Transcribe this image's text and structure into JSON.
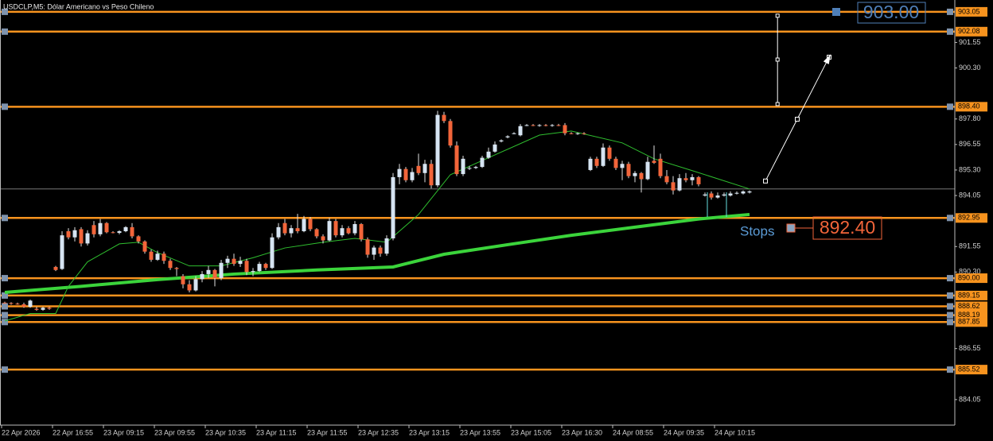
{
  "header": {
    "title": "USDCLP,M5:  Dólar Americano vs Peso Chileno"
  },
  "chart_data": {
    "type": "candlestick",
    "up_color": "#d6e4f2",
    "down_color": "#f2653a",
    "wick_color": "#e0e0e0",
    "ylim": [
      882.8,
      903.63
    ],
    "yticks": [
      901.55,
      {
        "value": 900.3,
        "label": "900.30"
      },
      {
        "value": 897.8,
        "label": "897.80"
      },
      896.55,
      {
        "value": 895.3,
        "label": "895.30"
      },
      894.05,
      891.55,
      {
        "value": 890.3,
        "label": "890.30"
      },
      886.55,
      884.05
    ],
    "x_labels": [
      "22 Apr 2026",
      "22 Apr 16:55",
      "23 Apr 09:15",
      "23 Apr 09:55",
      "23 Apr 10:35",
      "23 Apr 11:15",
      "23 Apr 11:55",
      "23 Apr 12:35",
      "23 Apr 13:15",
      "23 Apr 13:55",
      "23 Apr 15:05",
      "23 Apr 16:30",
      "24 Apr 08:55",
      "24 Apr 09:35",
      "24 Apr 10:15"
    ],
    "levels": [
      903.05,
      902.08,
      {
        "value": 898.4,
        "label": "898.40"
      },
      892.95,
      {
        "value": 890,
        "label": "890.00"
      },
      889.15,
      888.62,
      888.19,
      887.85,
      885.52
    ],
    "level_color": "#f7931e",
    "bid": 894.37,
    "candles": [
      [
        888.8,
        888.85,
        888.75,
        888.78
      ],
      [
        888.78,
        888.82,
        888.7,
        888.75
      ],
      [
        888.75,
        888.8,
        888.7,
        888.72
      ],
      [
        888.72,
        888.8,
        888.55,
        888.6
      ],
      [
        888.6,
        888.95,
        888.55,
        888.9
      ],
      [
        888.5,
        888.6,
        888.4,
        888.45
      ],
      [
        888.45,
        888.6,
        888.4,
        888.55
      ],
      [
        888.55,
        888.6,
        888.45,
        888.5
      ],
      [
        890.55,
        890.6,
        890.35,
        890.4
      ],
      [
        890.45,
        892.3,
        890.4,
        892.1
      ],
      [
        892.3,
        892.45,
        891.9,
        892.0
      ],
      [
        892.0,
        892.5,
        891.8,
        892.35
      ],
      [
        892.4,
        892.5,
        891.55,
        891.7
      ],
      [
        891.7,
        892.35,
        891.6,
        892.2
      ],
      [
        892.6,
        892.8,
        892.0,
        892.15
      ],
      [
        892.15,
        892.9,
        892.05,
        892.7
      ],
      [
        892.7,
        892.75,
        892.2,
        892.25
      ],
      [
        892.25,
        892.3,
        892.2,
        892.22
      ],
      [
        892.22,
        892.35,
        892.15,
        892.3
      ],
      [
        892.3,
        892.55,
        892.25,
        892.5
      ],
      [
        892.5,
        892.7,
        891.95,
        892.05
      ],
      [
        892.05,
        892.1,
        891.7,
        891.8
      ],
      [
        891.8,
        891.85,
        891.2,
        891.3
      ],
      [
        891.3,
        891.4,
        890.8,
        890.9
      ],
      [
        890.9,
        891.35,
        890.85,
        891.2
      ],
      [
        891.2,
        891.3,
        890.7,
        890.85
      ],
      [
        890.85,
        890.95,
        890.4,
        890.5
      ],
      [
        890.5,
        890.55,
        890.1,
        890.45
      ],
      [
        890.1,
        890.2,
        889.5,
        889.7
      ],
      [
        889.7,
        889.9,
        889.3,
        889.4
      ],
      [
        889.4,
        890.1,
        889.35,
        889.95
      ],
      [
        889.95,
        890.35,
        889.8,
        890.2
      ],
      [
        890.2,
        890.6,
        890.0,
        890.4
      ],
      [
        890.4,
        890.45,
        889.6,
        890.0
      ],
      [
        890.0,
        890.9,
        889.9,
        890.75
      ],
      [
        890.75,
        891.1,
        890.5,
        890.95
      ],
      [
        890.95,
        891.2,
        890.6,
        890.7
      ],
      [
        890.7,
        891.05,
        890.55,
        890.85
      ],
      [
        890.85,
        890.95,
        890.15,
        890.3
      ],
      [
        890.3,
        890.5,
        890.1,
        890.35
      ],
      [
        890.35,
        890.8,
        890.3,
        890.7
      ],
      [
        890.7,
        890.75,
        890.4,
        890.5
      ],
      [
        890.5,
        892.2,
        890.45,
        892.0
      ],
      [
        892.0,
        892.7,
        891.9,
        892.5
      ],
      [
        892.7,
        892.9,
        892.1,
        892.2
      ],
      [
        892.2,
        892.6,
        892.0,
        892.45
      ],
      [
        892.45,
        893.15,
        892.2,
        892.3
      ],
      [
        892.3,
        893.05,
        892.25,
        892.9
      ],
      [
        892.9,
        893.0,
        892.3,
        892.4
      ],
      [
        892.4,
        892.45,
        891.95,
        892.05
      ],
      [
        892.05,
        892.15,
        891.7,
        891.85
      ],
      [
        891.85,
        892.95,
        891.8,
        892.8
      ],
      [
        892.8,
        892.9,
        892.0,
        892.1
      ],
      [
        892.1,
        892.6,
        892.0,
        892.45
      ],
      [
        892.45,
        892.55,
        892.15,
        892.2
      ],
      [
        892.2,
        892.8,
        892.1,
        892.65
      ],
      [
        892.65,
        892.7,
        891.8,
        891.9
      ],
      [
        891.9,
        892.0,
        891.0,
        891.15
      ],
      [
        891.15,
        891.6,
        890.9,
        891.5
      ],
      [
        891.5,
        891.6,
        891.05,
        891.2
      ],
      [
        891.2,
        892.1,
        891.1,
        891.95
      ],
      [
        891.95,
        895.15,
        891.85,
        894.95
      ],
      [
        894.95,
        895.6,
        894.6,
        895.35
      ],
      [
        895.35,
        895.45,
        894.7,
        894.8
      ],
      [
        894.8,
        895.4,
        894.7,
        895.2
      ],
      [
        895.5,
        896.1,
        895.05,
        895.15
      ],
      [
        895.15,
        895.8,
        894.7,
        895.6
      ],
      [
        895.6,
        895.8,
        894.4,
        894.55
      ],
      [
        894.55,
        898.2,
        894.45,
        898.0
      ],
      [
        898.0,
        898.15,
        897.6,
        897.7
      ],
      [
        897.7,
        897.8,
        896.4,
        896.5
      ],
      [
        896.5,
        896.7,
        895.0,
        895.1
      ],
      [
        895.1,
        896.0,
        895.0,
        895.85
      ],
      [
        895.4,
        895.5,
        895.3,
        895.4
      ],
      [
        895.4,
        895.5,
        895.35,
        895.45
      ],
      [
        895.45,
        896.0,
        895.4,
        895.9
      ],
      [
        895.9,
        896.4,
        895.85,
        896.2
      ],
      [
        896.2,
        896.7,
        896.15,
        896.55
      ],
      [
        896.7,
        896.8,
        896.65,
        896.75
      ],
      [
        896.9,
        897.0,
        896.85,
        896.95
      ],
      [
        897.1,
        897.15,
        897.05,
        897.1
      ],
      [
        897.0,
        897.55,
        896.95,
        897.45
      ],
      [
        897.5,
        897.55,
        897.45,
        897.5
      ],
      [
        897.5,
        897.55,
        897.45,
        897.48
      ],
      [
        897.48,
        897.55,
        897.42,
        897.5
      ],
      [
        897.5,
        897.55,
        897.44,
        897.47
      ],
      [
        897.47,
        897.55,
        897.42,
        897.5
      ],
      [
        897.5,
        897.56,
        897.45,
        897.49
      ],
      [
        897.5,
        897.6,
        897.0,
        897.1
      ],
      [
        897.1,
        897.15,
        897.05,
        897.08
      ],
      [
        897.08,
        897.14,
        897.02,
        897.1
      ],
      [
        897.1,
        897.15,
        897.03,
        897.07
      ],
      [
        895.3,
        895.95,
        895.25,
        895.85
      ],
      [
        895.85,
        895.95,
        895.4,
        895.5
      ],
      [
        895.5,
        896.6,
        895.45,
        896.4
      ],
      [
        896.4,
        896.5,
        895.75,
        895.85
      ],
      [
        895.85,
        895.95,
        895.3,
        895.4
      ],
      [
        895.4,
        895.75,
        894.8,
        895.6
      ],
      [
        895.6,
        895.7,
        894.9,
        895.0
      ],
      [
        895.0,
        895.25,
        894.7,
        895.15
      ],
      [
        895.15,
        895.2,
        894.2,
        894.85
      ],
      [
        894.85,
        895.95,
        894.8,
        895.7
      ],
      [
        895.75,
        896.5,
        895.6,
        895.65
      ],
      [
        895.85,
        896.1,
        894.9,
        895.0
      ],
      [
        895.0,
        895.3,
        894.6,
        894.7
      ],
      [
        894.7,
        895.0,
        894.1,
        894.3
      ],
      [
        894.3,
        895.1,
        894.25,
        894.9
      ],
      [
        894.9,
        895.15,
        894.7,
        894.8
      ],
      [
        894.8,
        895.1,
        894.55,
        894.95
      ],
      [
        894.95,
        895.0,
        894.5,
        894.6
      ],
      [
        894.05,
        894.2,
        894.0,
        894.1
      ],
      [
        894.15,
        894.25,
        893.85,
        893.95
      ],
      [
        893.95,
        894.2,
        893.9,
        894.05
      ],
      [
        894.05,
        894.2,
        894.0,
        894.1
      ],
      [
        894.05,
        894.25,
        894.0,
        894.15
      ],
      [
        894.15,
        894.25,
        894.1,
        894.18
      ],
      [
        894.15,
        894.3,
        894.1,
        894.25
      ],
      [
        894.2,
        894.3,
        894.15,
        894.25
      ]
    ],
    "moving_averages": [
      {
        "color": "#3bd43b",
        "width": 4,
        "x": [
          0,
          12,
          24,
          36,
          49,
          61,
          69,
          79,
          89,
          99,
          109,
          117
        ],
        "values": [
          889.3,
          889.6,
          889.93,
          890.2,
          890.4,
          890.55,
          891.17,
          891.64,
          892.1,
          892.5,
          892.9,
          893.12
        ]
      },
      {
        "color": "#2fbf2f",
        "width": 1,
        "x": [
          0,
          4,
          8,
          10,
          13,
          18,
          21,
          24,
          29,
          34,
          39,
          44,
          50,
          55,
          60,
          65,
          70,
          77,
          84,
          89,
          97,
          102,
          108,
          117
        ],
        "values": [
          887.9,
          888.27,
          888.27,
          889.6,
          890.8,
          891.68,
          891.76,
          891.25,
          890.6,
          890.6,
          891.0,
          891.48,
          891.76,
          891.95,
          891.76,
          893.12,
          895.07,
          896.04,
          897.01,
          897.21,
          896.63,
          895.85,
          895.27,
          894.37
        ]
      }
    ],
    "projection": {
      "x": [
        119.5,
        124.5,
        129.5
      ],
      "values": [
        894.76,
        897.79,
        900.83
      ]
    },
    "target_range": {
      "x": [
        121.4,
        121.4,
        121.4
      ],
      "values": [
        902.86,
        900.71,
        898.53
      ]
    }
  },
  "annotations": {
    "target": "903.00",
    "stop": "892.40",
    "stop_label": "Stops"
  }
}
